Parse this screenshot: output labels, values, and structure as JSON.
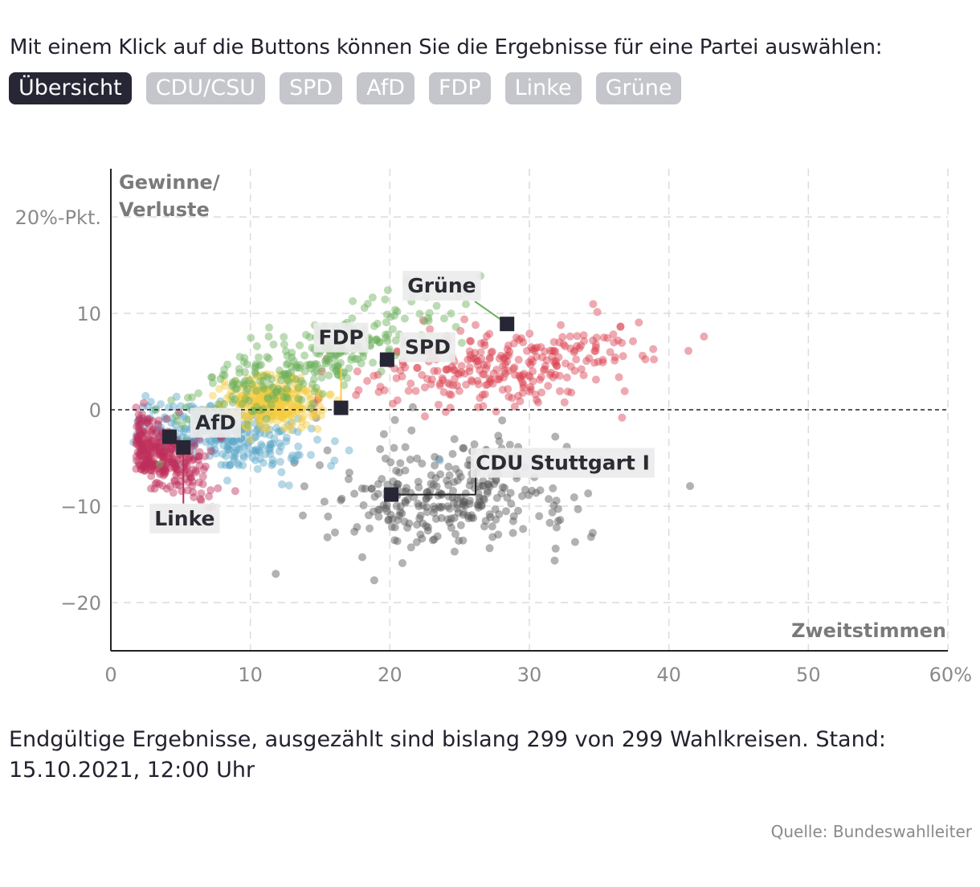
{
  "intro_text": "Mit einem Klick auf die Buttons können Sie die Ergebnisse für eine Partei auswählen:",
  "buttons": [
    {
      "label": "Übersicht",
      "active": true
    },
    {
      "label": "CDU/CSU",
      "active": false
    },
    {
      "label": "SPD",
      "active": false
    },
    {
      "label": "AfD",
      "active": false
    },
    {
      "label": "FDP",
      "active": false
    },
    {
      "label": "Linke",
      "active": false
    },
    {
      "label": "Grüne",
      "active": false
    }
  ],
  "colors": {
    "CDU": "#555555",
    "SPD": "#d9414f",
    "AfD": "#5ca7c7",
    "FDP": "#f5cc3f",
    "Linke": "#be2e5a",
    "Grüne": "#6aaf5a",
    "marker": "#262635",
    "button_active": "#262635",
    "button_inactive": "#c5c6cb"
  },
  "chart_data": {
    "type": "scatter",
    "ylabel": "Gewinne/ Verluste",
    "ylabel_lines": [
      "Gewinne/",
      "Verluste"
    ],
    "xlabel": "Zweitstimmen",
    "xlim": [
      0,
      60
    ],
    "ylim": [
      -25,
      25
    ],
    "x_ticks": [
      0,
      10,
      20,
      30,
      40,
      50,
      60
    ],
    "x_tick_labels": [
      "0",
      "10",
      "20",
      "30",
      "40",
      "50",
      "60%"
    ],
    "y_ticks": [
      20,
      10,
      0,
      -10,
      -20
    ],
    "y_tick_labels": [
      "20%-Pkt.",
      "10",
      "0",
      "−10",
      "−20"
    ],
    "reference_line_y": 0,
    "series": [
      {
        "name": "CDU",
        "center": [
          24,
          -9
        ],
        "spread": [
          4.5,
          2.8
        ],
        "points": 299
      },
      {
        "name": "SPD",
        "center": [
          28,
          4.5
        ],
        "spread": [
          5.5,
          2.0
        ],
        "points": 299
      },
      {
        "name": "AfD",
        "center": [
          8,
          -2.5
        ],
        "spread": [
          3.0,
          1.5
        ],
        "points": 299
      },
      {
        "name": "FDP",
        "center": [
          11.5,
          0.8
        ],
        "spread": [
          1.8,
          1.3
        ],
        "points": 299
      },
      {
        "name": "Linke",
        "center": [
          3.6,
          -4.5
        ],
        "spread": [
          1.6,
          1.7
        ],
        "points": 299
      },
      {
        "name": "Grüne",
        "center": [
          14,
          4.5
        ],
        "spread": [
          5.0,
          2.0
        ],
        "points": 299
      }
    ],
    "national_results": [
      {
        "party": "Grüne",
        "label": "Grüne",
        "x": 28.4,
        "y": 8.9
      },
      {
        "party": "SPD",
        "label": "SPD",
        "x": 19.8,
        "y": 5.2
      },
      {
        "party": "FDP",
        "label": "FDP",
        "x": 16.5,
        "y": 0.2
      },
      {
        "party": "CDU",
        "label": "CDU Stuttgart I",
        "x": 20.1,
        "y": -8.8
      },
      {
        "party": "AfD",
        "label": "AfD",
        "x": 4.2,
        "y": -2.8
      },
      {
        "party": "Linke",
        "label": "Linke",
        "x": 5.2,
        "y": -3.9
      }
    ]
  },
  "footer_text": "Endgültige Ergebnisse, ausgezählt sind bislang 299 von 299 Wahlkreisen. Stand: 15.10.2021, 12:00 Uhr",
  "source_text": "Quelle: Bundeswahlleiter"
}
